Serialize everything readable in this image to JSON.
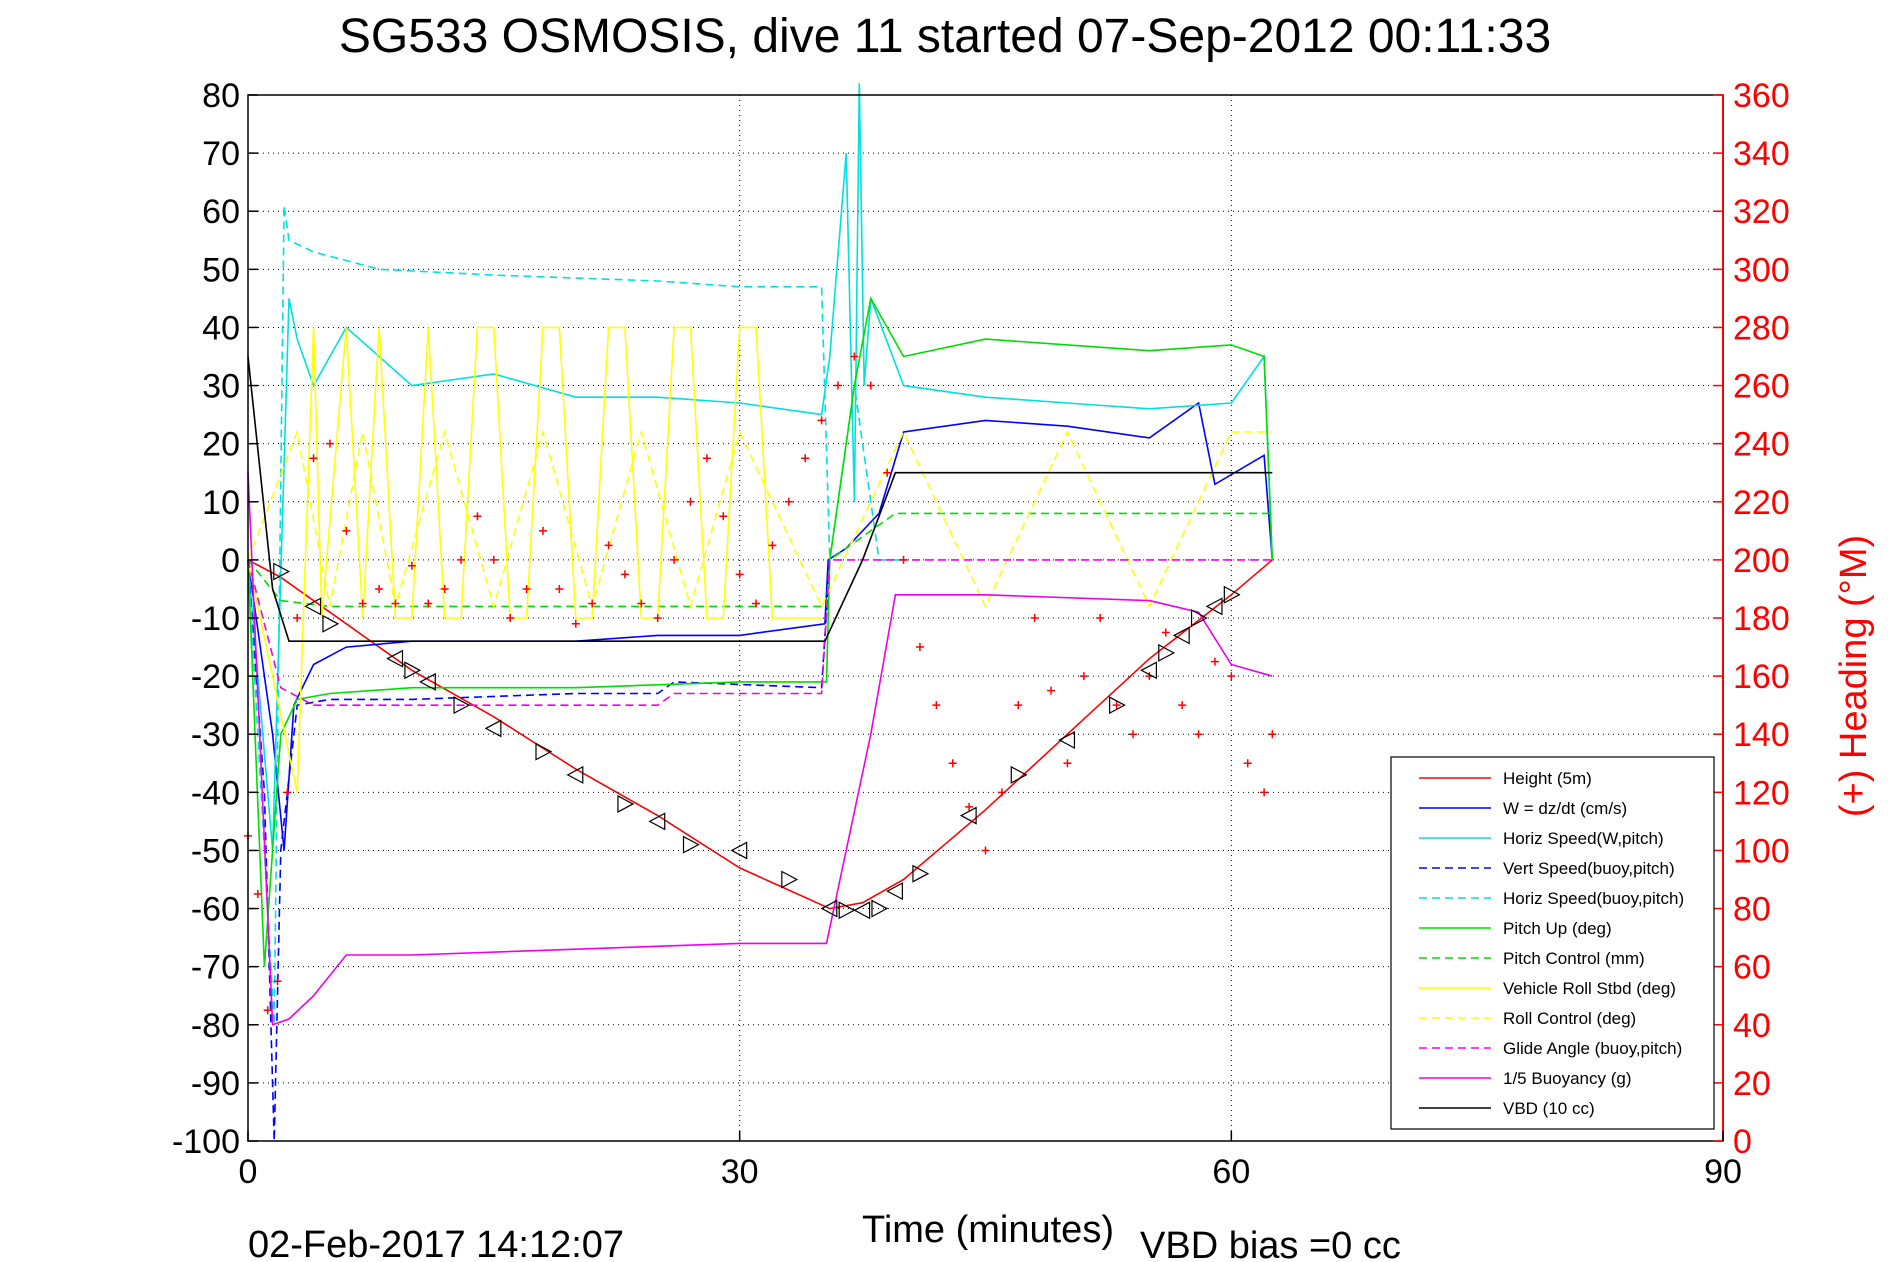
{
  "chart_data": {
    "type": "line",
    "title": "SG533 OSMOSIS, dive 11 started 07-Sep-2012 00:11:33",
    "xlabel": "Time (minutes)",
    "ylabel_right": "(+) Heading (°M)",
    "footer_date": "02-Feb-2017 14:12:07",
    "footer_bias": "VBD bias =0 cc",
    "xlim": [
      0,
      90
    ],
    "ylim": [
      -100,
      80
    ],
    "ylim_right": [
      0,
      360
    ],
    "xticks": [
      0,
      30,
      60,
      90
    ],
    "yticks": [
      -100,
      -90,
      -80,
      -70,
      -60,
      -50,
      -40,
      -30,
      -20,
      -10,
      0,
      10,
      20,
      30,
      40,
      50,
      60,
      70,
      80
    ],
    "yticks_right": [
      0,
      20,
      40,
      60,
      80,
      100,
      120,
      140,
      160,
      180,
      200,
      220,
      240,
      260,
      280,
      300,
      320,
      340,
      360
    ],
    "grid": true,
    "legend_position": "bottom-right",
    "series": [
      {
        "name": "Height (5m)",
        "color": "#ff0000",
        "style": "solid",
        "x": [
          0,
          2,
          5,
          10,
          15,
          20,
          25,
          30,
          35.5,
          37.5,
          40,
          45,
          50,
          55,
          60,
          62.5
        ],
        "y": [
          0,
          -3,
          -9,
          -19,
          -27,
          -36,
          -44,
          -53,
          -60,
          -59,
          -55,
          -43,
          -30,
          -17,
          -6,
          0
        ]
      },
      {
        "name": "W = dz/dt (cm/s)",
        "color": "#0000ff",
        "style": "solid",
        "x": [
          0,
          1.5,
          2.2,
          2.8,
          4,
          6,
          10,
          15,
          20,
          25,
          30,
          35.2,
          35.4,
          36.5,
          38.5,
          40,
          45,
          50,
          55,
          58,
          59,
          62,
          62.5
        ],
        "y": [
          0,
          -30,
          -50,
          -25,
          -18,
          -15,
          -14,
          -14,
          -14,
          -13,
          -13,
          -11,
          0,
          2,
          8,
          22,
          24,
          23,
          21,
          27,
          13,
          18,
          0
        ]
      },
      {
        "name": "Horiz Speed(W,pitch)",
        "color": "#00e0e0",
        "style": "solid",
        "x": [
          0,
          1.5,
          2.5,
          3,
          4,
          5,
          6,
          10,
          15,
          20,
          25,
          30,
          35,
          35.5,
          36.5,
          37,
          37.3,
          37.6,
          38,
          40,
          45,
          50,
          55,
          60,
          62,
          62.5
        ],
        "y": [
          0,
          -50,
          45,
          38,
          30,
          35,
          40,
          30,
          32,
          28,
          28,
          27,
          25,
          35,
          70,
          10,
          82,
          30,
          45,
          30,
          28,
          27,
          26,
          27,
          35,
          0
        ]
      },
      {
        "name": "Vert Speed(buoy,pitch)",
        "color": "#0000ff",
        "style": "dashed",
        "x": [
          0,
          1,
          1.6,
          2,
          3,
          5,
          10,
          20,
          25,
          26,
          35,
          35.5
        ],
        "y": [
          0,
          -40,
          -100,
          -50,
          -25,
          -24,
          -24,
          -23,
          -23,
          -21,
          -22,
          0
        ]
      },
      {
        "name": "Horiz Speed(buoy,pitch)",
        "color": "#00e0e0",
        "style": "dashed",
        "x": [
          0,
          1.6,
          2.2,
          2.5,
          4,
          8,
          15,
          25,
          30,
          35,
          35.5,
          37,
          38.5,
          40
        ],
        "y": [
          0,
          -80,
          61,
          55,
          53,
          50,
          49,
          48,
          47,
          47,
          0,
          30,
          0,
          0
        ]
      },
      {
        "name": "Pitch Up (deg)",
        "color": "#00dd00",
        "style": "solid",
        "x": [
          0,
          1,
          2,
          3,
          5,
          10,
          20,
          30,
          35.3,
          35.5,
          37,
          38,
          40,
          45,
          50,
          55,
          60,
          62,
          62.5
        ],
        "y": [
          0,
          -70,
          -30,
          -24,
          -23,
          -22,
          -22,
          -21,
          -21,
          0,
          30,
          45,
          35,
          38,
          37,
          36,
          37,
          35,
          0
        ]
      },
      {
        "name": "Pitch Control (mm)",
        "color": "#00dd00",
        "style": "dashed",
        "x": [
          0,
          2,
          5,
          20,
          35.3,
          35.5,
          38,
          39.5,
          40,
          50,
          62.5
        ],
        "y": [
          0,
          -7,
          -8,
          -8,
          -8,
          0,
          5,
          8,
          8,
          8,
          8
        ]
      },
      {
        "name": "Vehicle Roll Stbd (deg)",
        "color": "#ffff00",
        "style": "solid",
        "x": [
          0,
          3,
          4,
          4.5,
          6,
          7,
          8,
          9,
          10,
          11,
          12,
          13,
          14,
          15,
          16,
          17,
          18,
          19,
          20,
          21,
          22,
          23,
          24,
          25,
          26,
          27,
          28,
          29,
          30,
          31,
          32,
          33,
          34,
          35
        ],
        "y": [
          0,
          -40,
          40,
          -10,
          40,
          -10,
          40,
          -10,
          -10,
          40,
          -10,
          -10,
          40,
          40,
          -10,
          -10,
          40,
          40,
          -10,
          -10,
          40,
          40,
          -10,
          -10,
          40,
          40,
          -10,
          -10,
          40,
          40,
          -10,
          -10,
          -10,
          -10
        ]
      },
      {
        "name": "Roll Control (deg)",
        "color": "#ffff00",
        "style": "dashed",
        "x": [
          0,
          3,
          5,
          7,
          9,
          12,
          15,
          18,
          21,
          24,
          27,
          30,
          35,
          40,
          45,
          50,
          55,
          60,
          62.5
        ],
        "y": [
          0,
          22,
          -8,
          22,
          -8,
          22,
          -8,
          22,
          -8,
          22,
          -8,
          22,
          -8,
          22,
          -8,
          22,
          -8,
          22,
          22
        ]
      },
      {
        "name": "Glide Angle (buoy,pitch)",
        "color": "#ee00ee",
        "style": "dashed",
        "x": [
          0,
          2,
          4,
          10,
          20,
          25,
          26,
          35,
          35.5,
          62.5
        ],
        "y": [
          0,
          -22,
          -25,
          -25,
          -25,
          -25,
          -23,
          -23,
          0,
          0
        ]
      },
      {
        "name": "1/5 Buoyancy (g)",
        "color": "#ee00ee",
        "style": "solid",
        "x": [
          0,
          1.5,
          2.5,
          4,
          6,
          10,
          20,
          30,
          35,
          35.3,
          38,
          39.5,
          45,
          55,
          58,
          60,
          62.5
        ],
        "y": [
          15,
          -80,
          -79,
          -75,
          -68,
          -68,
          -67,
          -66,
          -66,
          -66,
          -30,
          -6,
          -6,
          -7,
          -9,
          -18,
          -20
        ]
      },
      {
        "name": "VBD (10 cc)",
        "color": "#000000",
        "style": "solid",
        "x": [
          0,
          1.5,
          2.5,
          35.2,
          37.5,
          39.5,
          62.5
        ],
        "y": [
          35,
          -5,
          -14,
          -14,
          0,
          15,
          15
        ]
      }
    ],
    "markers": {
      "name": "Heading",
      "color": "#ff0000",
      "symbol": "+",
      "axis": "right",
      "x": [
        0,
        0.6,
        1.2,
        1.8,
        2.4,
        3,
        4,
        5,
        6,
        7,
        8,
        9,
        10,
        11,
        12,
        13,
        14,
        15,
        16,
        17,
        18,
        19,
        20,
        21,
        22,
        23,
        24,
        25,
        26,
        27,
        28,
        29,
        30,
        31,
        32,
        33,
        34,
        35,
        36,
        37,
        38,
        39,
        40,
        41,
        42,
        43,
        44,
        45,
        46,
        47,
        48,
        49,
        50,
        51,
        52,
        53,
        54,
        55,
        56,
        57,
        58,
        59,
        60,
        61,
        62,
        62.5
      ],
      "y": [
        105,
        85,
        45,
        55,
        120,
        180,
        235,
        240,
        210,
        185,
        190,
        185,
        198,
        185,
        190,
        200,
        215,
        200,
        180,
        190,
        210,
        190,
        178,
        185,
        205,
        195,
        185,
        180,
        200,
        220,
        235,
        215,
        195,
        185,
        205,
        220,
        235,
        248,
        260,
        270,
        260,
        230,
        200,
        170,
        150,
        130,
        115,
        100,
        120,
        150,
        180,
        155,
        130,
        160,
        180,
        150,
        140,
        160,
        175,
        150,
        140,
        165,
        160,
        130,
        120,
        140
      ]
    },
    "triangles": {
      "color": "#000000",
      "x": [
        2,
        4,
        5,
        9,
        10,
        11,
        13,
        15,
        18,
        20,
        23,
        25,
        27,
        30,
        33,
        35.5,
        36.5,
        37.5,
        38.5,
        39.5,
        41,
        44,
        47,
        50,
        53,
        55,
        56,
        57,
        58,
        59,
        60
      ],
      "y": [
        -2,
        -8,
        -11,
        -17,
        -19,
        -21,
        -25,
        -29,
        -33,
        -37,
        -42,
        -45,
        -49,
        -50,
        -55,
        -60,
        -60.3,
        -60.3,
        -60,
        -57,
        -54,
        -44,
        -37,
        -31,
        -25,
        -19,
        -16,
        -13,
        -10,
        -8,
        -6
      ]
    }
  }
}
